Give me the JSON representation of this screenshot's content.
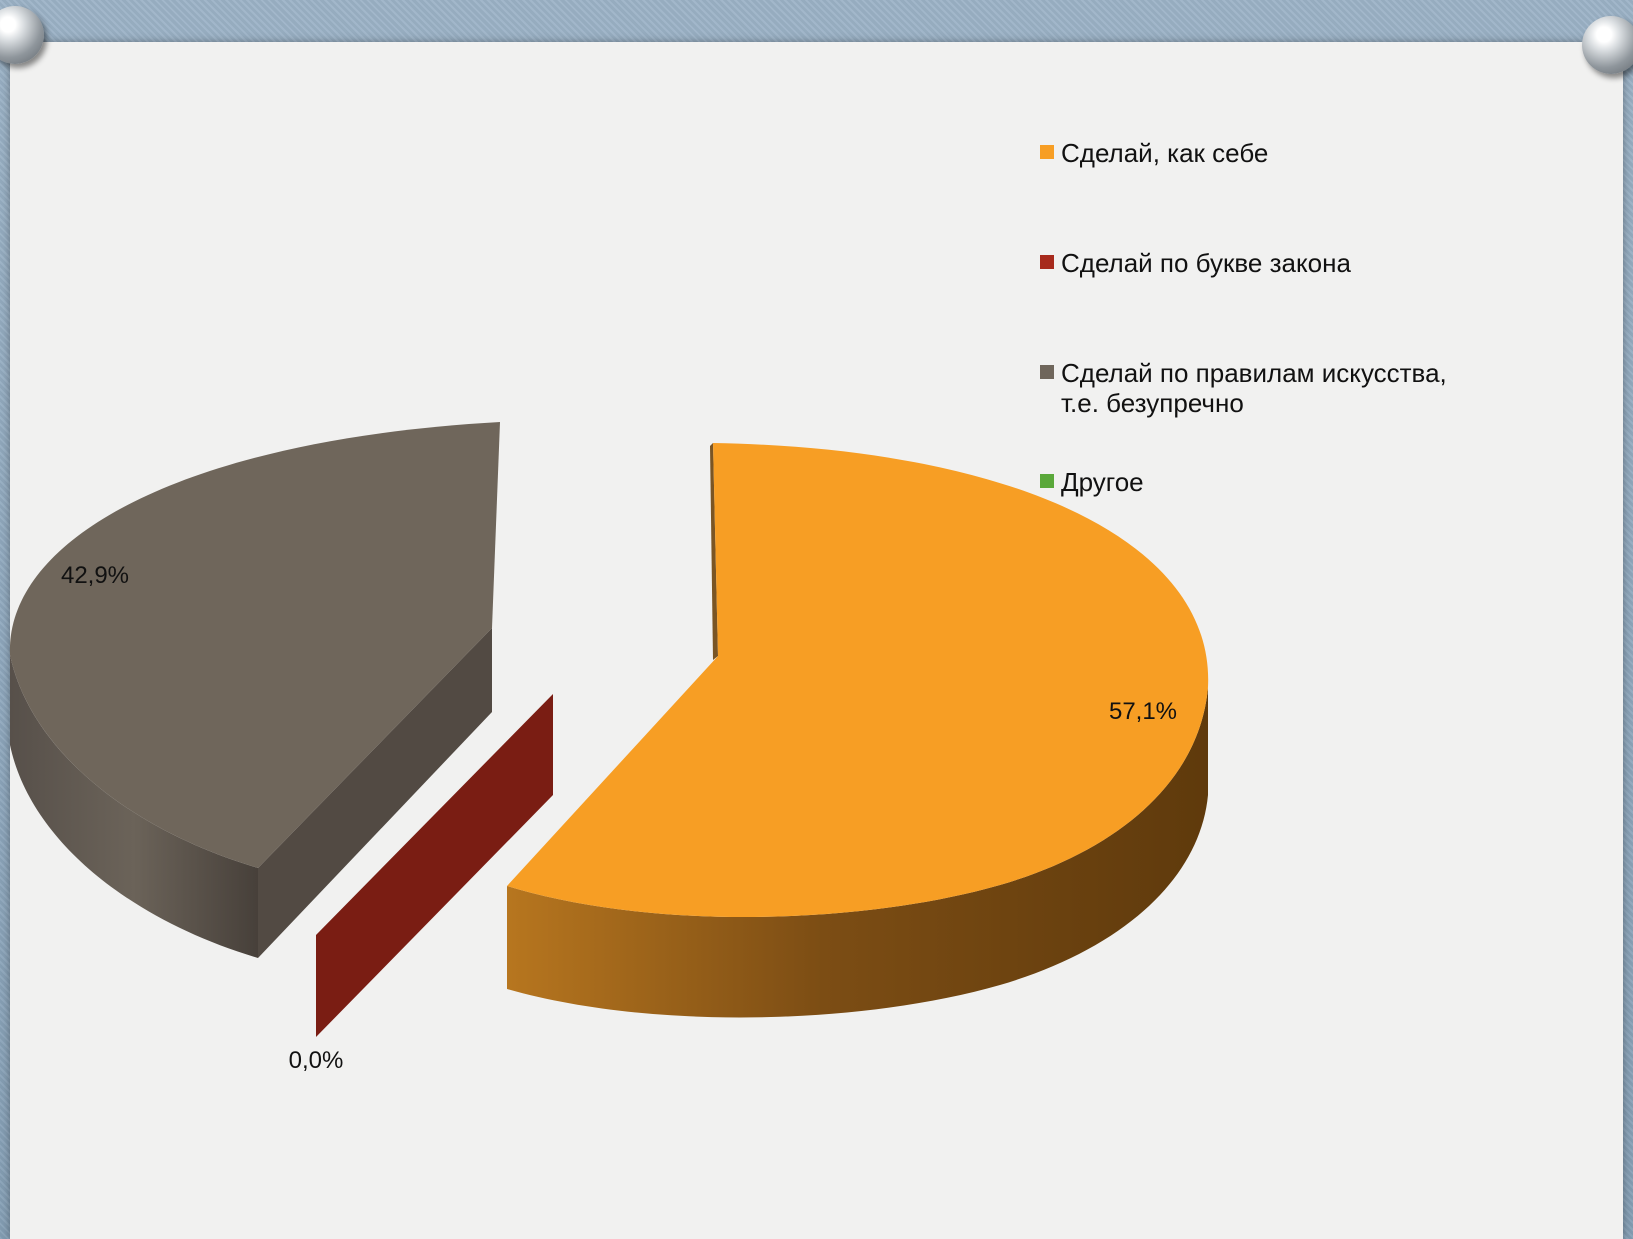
{
  "chart_data": {
    "type": "pie",
    "title": "",
    "categories": [
      "Сделай, как себе",
      "Сделай по букве закона",
      "Сделай по правилам искусства, т.е. безупречно",
      "Другое"
    ],
    "legend_lines": [
      [
        "Сделай, как себе"
      ],
      [
        "Сделай по букве закона"
      ],
      [
        "Сделай по правилам искусства,",
        "т.е. безупречно"
      ],
      [
        "Другое"
      ]
    ],
    "values": [
      57.1,
      0.0,
      42.9,
      0.0
    ],
    "data_labels": [
      "57,1%",
      "0,0%",
      "42,9%",
      ""
    ],
    "colors": [
      "#f79e24",
      "#a72a1c",
      "#6f665b",
      "#5aa83a"
    ],
    "legend_position": "right",
    "style": "3d-exploded"
  }
}
